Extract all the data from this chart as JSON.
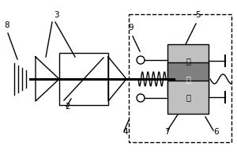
{
  "bg_color": "#ffffff",
  "line_color": "#000000",
  "fig_w": 3.0,
  "fig_h": 2.0,
  "dpi": 100,
  "xlim": [
    0,
    300
  ],
  "ylim": [
    0,
    200
  ]
}
